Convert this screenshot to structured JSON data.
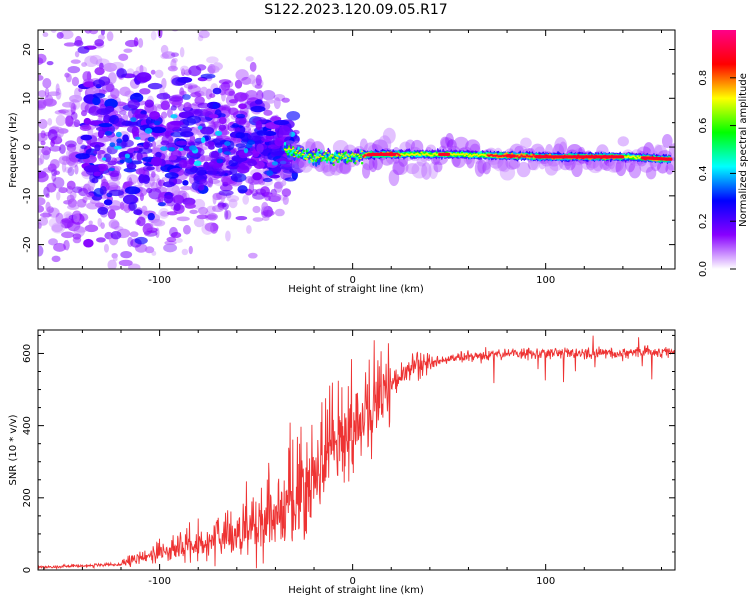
{
  "title": "S122.2023.120.09.05.R17",
  "chart_data": [
    {
      "type": "heatmap",
      "xlabel": "Height of straight line (km)",
      "ylabel": "Frequency (Hz)",
      "xlim": [
        -163,
        167
      ],
      "ylim": [
        -25,
        24
      ],
      "xticks": [
        -100,
        0,
        100
      ],
      "yticks": [
        -20,
        -10,
        0,
        10,
        20
      ],
      "colorbar": {
        "label": "Normalized spectral amplitude",
        "range": [
          0,
          1
        ],
        "ticks": [
          "0.0",
          "0.2",
          "0.4",
          "0.6",
          "0.8"
        ],
        "colors": [
          "#ffffff",
          "#8800ff",
          "#0000ff",
          "#00ffff",
          "#00ff00",
          "#ffff00",
          "#ff0000",
          "#ff0088"
        ]
      },
      "ridge": [
        {
          "x": -40,
          "y": 0
        },
        {
          "x": -30,
          "y": -1
        },
        {
          "x": -20,
          "y": -2
        },
        {
          "x": 0,
          "y": -2
        },
        {
          "x": 10,
          "y": -1.5
        },
        {
          "x": 50,
          "y": -1.5
        },
        {
          "x": 100,
          "y": -2
        },
        {
          "x": 140,
          "y": -2
        },
        {
          "x": 165,
          "y": -2.5
        }
      ]
    },
    {
      "type": "line",
      "xlabel": "Height of straight line (km)",
      "ylabel": "SNR (10 * v/v)",
      "xlim": [
        -163,
        167
      ],
      "ylim": [
        0,
        665
      ],
      "xticks": [
        -100,
        0,
        100
      ],
      "yticks": [
        0,
        200,
        400,
        600
      ],
      "color": "#ee3333",
      "envelope": [
        {
          "x": -163,
          "y": 8
        },
        {
          "x": -120,
          "y": 15
        },
        {
          "x": -100,
          "y": 50
        },
        {
          "x": -80,
          "y": 75
        },
        {
          "x": -60,
          "y": 100
        },
        {
          "x": -40,
          "y": 160
        },
        {
          "x": -20,
          "y": 250
        },
        {
          "x": -10,
          "y": 320
        },
        {
          "x": 0,
          "y": 380
        },
        {
          "x": 10,
          "y": 440
        },
        {
          "x": 20,
          "y": 510
        },
        {
          "x": 30,
          "y": 560
        },
        {
          "x": 45,
          "y": 580
        },
        {
          "x": 60,
          "y": 590
        },
        {
          "x": 80,
          "y": 600
        },
        {
          "x": 120,
          "y": 600
        },
        {
          "x": 167,
          "y": 605
        }
      ]
    }
  ]
}
